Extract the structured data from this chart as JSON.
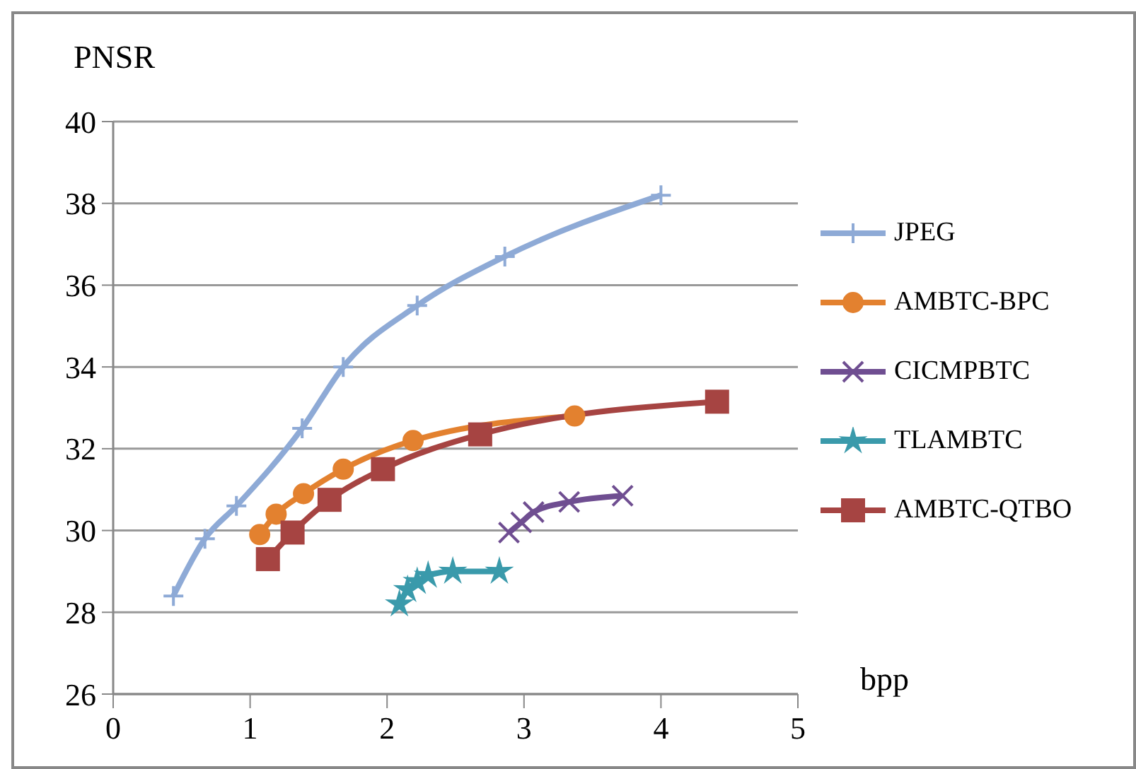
{
  "chart_data": {
    "type": "line",
    "xlabel": "bpp",
    "ylabel": "PNSR",
    "xlim": [
      0,
      5
    ],
    "xticks": [
      0,
      1,
      2,
      3,
      4,
      5
    ],
    "ylim": [
      26,
      40
    ],
    "yticks": [
      26,
      28,
      30,
      32,
      34,
      36,
      38,
      40
    ],
    "grid": "y",
    "legend": "right",
    "series": [
      {
        "name": "JPEG",
        "color": "#8eaad6",
        "marker": "cross",
        "x": [
          0.44,
          0.67,
          0.9,
          1.38,
          1.68,
          2.22,
          2.86,
          4.0
        ],
        "values": [
          28.4,
          29.8,
          30.6,
          32.5,
          34.0,
          35.5,
          36.7,
          38.2
        ]
      },
      {
        "name": "AMBTC-BPC",
        "color": "#e3812f",
        "marker": "circle",
        "x": [
          1.07,
          1.19,
          1.39,
          1.68,
          2.19,
          3.37
        ],
        "values": [
          29.9,
          30.4,
          30.9,
          31.5,
          32.2,
          32.8
        ]
      },
      {
        "name": "CICMPBTC",
        "color": "#6f4e91",
        "marker": "x",
        "x": [
          2.89,
          2.98,
          3.07,
          3.33,
          3.72
        ],
        "values": [
          29.95,
          30.2,
          30.45,
          30.7,
          30.85
        ]
      },
      {
        "name": "TLAMBTC",
        "color": "#3a9aab",
        "marker": "star",
        "x": [
          2.09,
          2.15,
          2.22,
          2.3,
          2.48,
          2.82
        ],
        "values": [
          28.2,
          28.55,
          28.75,
          28.9,
          29.0,
          29.0
        ]
      },
      {
        "name": "AMBTC-QTBO",
        "color": "#a64442",
        "marker": "square",
        "x": [
          1.13,
          1.31,
          1.58,
          1.97,
          2.68,
          4.41
        ],
        "values": [
          29.3,
          29.95,
          30.75,
          31.5,
          32.35,
          33.15
        ]
      }
    ]
  }
}
